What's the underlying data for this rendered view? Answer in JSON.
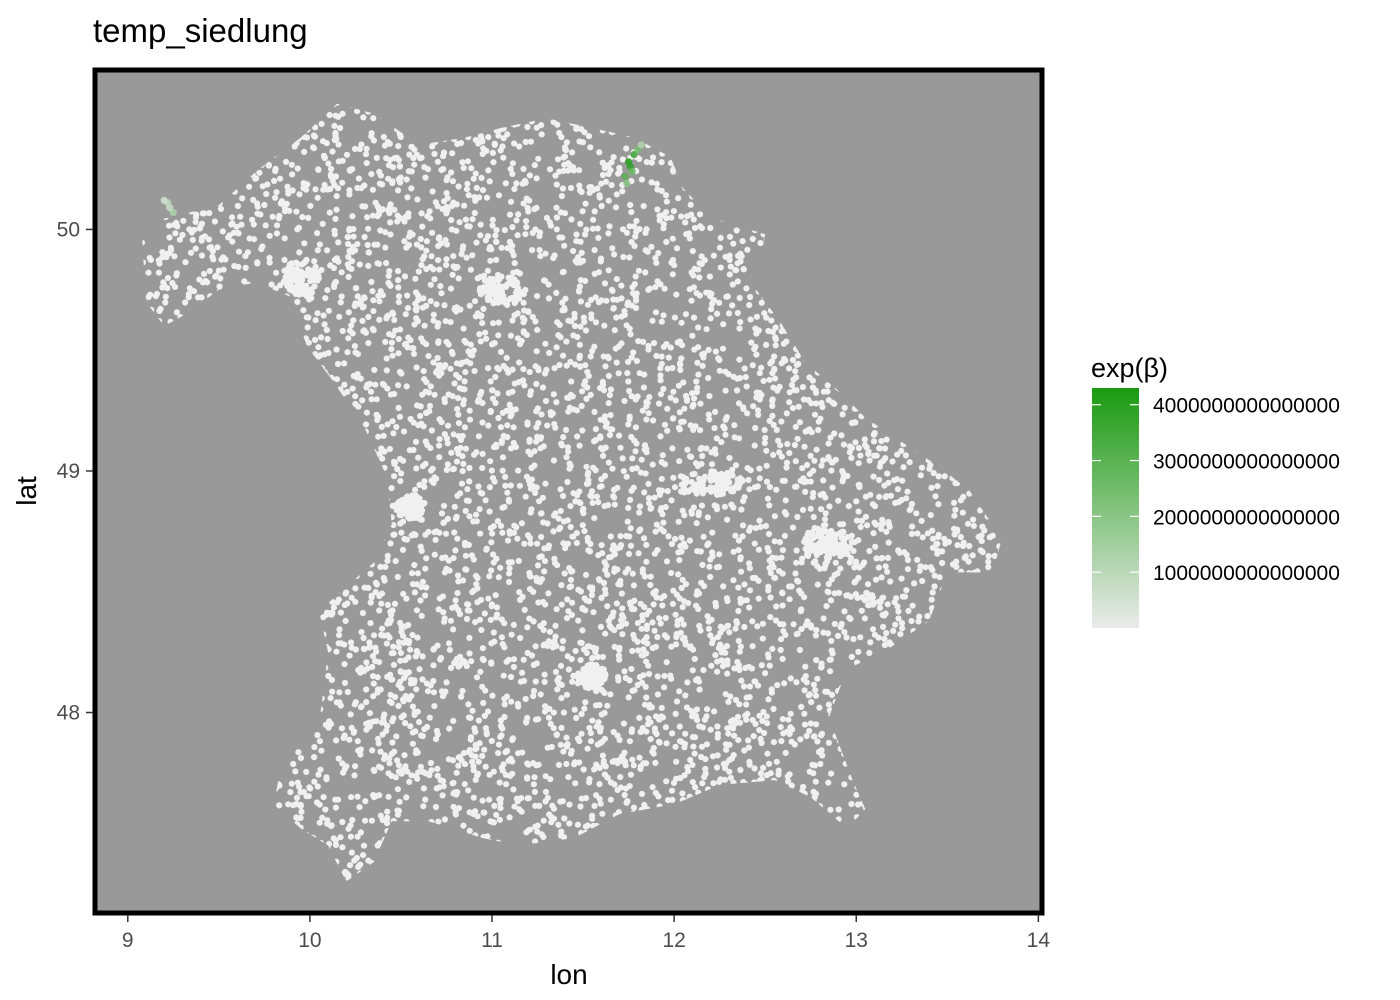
{
  "chart_data": {
    "type": "scatter",
    "title": "temp_siedlung",
    "xlabel": "lon",
    "ylabel": "lat",
    "xlim": [
      8.82,
      14.02
    ],
    "ylim": [
      47.17,
      50.66
    ],
    "x_ticks": [
      "9",
      "10",
      "11",
      "12",
      "13",
      "14"
    ],
    "y_ticks": [
      "48",
      "49",
      "50"
    ],
    "grid": false,
    "panel_background": "#999999",
    "point_color": "#f0f0f0",
    "legend": {
      "title": "exp(β)",
      "position": "right",
      "color_low": "#ebebeb",
      "color_high": "#1a9a10",
      "range": [
        0,
        4300000000000000
      ],
      "breaks": [
        "1000000000000000",
        "2000000000000000",
        "3000000000000000",
        "4000000000000000"
      ]
    },
    "highlight_points": [
      {
        "lon": 11.75,
        "lat": 50.28,
        "value": 4000000000000000
      },
      {
        "lon": 11.78,
        "lat": 50.31,
        "value": 3700000000000000
      },
      {
        "lon": 11.73,
        "lat": 50.22,
        "value": 3000000000000000
      },
      {
        "lon": 11.76,
        "lat": 50.26,
        "value": 3900000000000000
      },
      {
        "lon": 11.8,
        "lat": 50.33,
        "value": 2400000000000000
      },
      {
        "lon": 11.77,
        "lat": 50.24,
        "value": 2700000000000000
      },
      {
        "lon": 11.74,
        "lat": 50.19,
        "value": 2000000000000000
      },
      {
        "lon": 11.82,
        "lat": 50.35,
        "value": 1200000000000000
      },
      {
        "lon": 9.22,
        "lat": 50.11,
        "value": 900000000000000
      },
      {
        "lon": 9.25,
        "lat": 50.07,
        "value": 1300000000000000
      },
      {
        "lon": 9.23,
        "lat": 50.09,
        "value": 700000000000000
      },
      {
        "lon": 9.2,
        "lat": 50.12,
        "value": 500000000000000
      }
    ],
    "region_outline": [
      [
        9.12,
        50.03
      ],
      [
        9.5,
        50.1
      ],
      [
        9.72,
        50.25
      ],
      [
        9.95,
        50.38
      ],
      [
        10.15,
        50.52
      ],
      [
        10.35,
        50.48
      ],
      [
        10.6,
        50.35
      ],
      [
        10.85,
        50.38
      ],
      [
        11.05,
        50.42
      ],
      [
        11.3,
        50.46
      ],
      [
        11.55,
        50.42
      ],
      [
        11.78,
        50.38
      ],
      [
        11.98,
        50.3
      ],
      [
        12.05,
        50.17
      ],
      [
        12.2,
        50.05
      ],
      [
        12.5,
        49.98
      ],
      [
        12.45,
        49.75
      ],
      [
        12.58,
        49.62
      ],
      [
        12.72,
        49.45
      ],
      [
        12.92,
        49.32
      ],
      [
        13.05,
        49.22
      ],
      [
        13.25,
        49.12
      ],
      [
        13.45,
        49.02
      ],
      [
        13.62,
        48.92
      ],
      [
        13.8,
        48.72
      ],
      [
        13.75,
        48.58
      ],
      [
        13.5,
        48.58
      ],
      [
        13.4,
        48.38
      ],
      [
        13.15,
        48.25
      ],
      [
        12.95,
        48.18
      ],
      [
        12.85,
        47.98
      ],
      [
        12.98,
        47.72
      ],
      [
        13.05,
        47.6
      ],
      [
        12.95,
        47.52
      ],
      [
        12.75,
        47.65
      ],
      [
        12.55,
        47.72
      ],
      [
        12.25,
        47.7
      ],
      [
        12.0,
        47.62
      ],
      [
        11.7,
        47.58
      ],
      [
        11.45,
        47.48
      ],
      [
        11.15,
        47.45
      ],
      [
        10.95,
        47.48
      ],
      [
        10.65,
        47.55
      ],
      [
        10.45,
        47.55
      ],
      [
        10.35,
        47.38
      ],
      [
        10.2,
        47.3
      ],
      [
        10.1,
        47.45
      ],
      [
        9.95,
        47.52
      ],
      [
        9.8,
        47.62
      ],
      [
        9.85,
        47.8
      ],
      [
        10.05,
        47.95
      ],
      [
        10.1,
        48.25
      ],
      [
        10.05,
        48.42
      ],
      [
        10.35,
        48.62
      ],
      [
        10.45,
        48.78
      ],
      [
        10.42,
        48.98
      ],
      [
        10.3,
        49.18
      ],
      [
        10.12,
        49.38
      ],
      [
        9.98,
        49.52
      ],
      [
        9.9,
        49.72
      ],
      [
        9.7,
        49.78
      ],
      [
        9.5,
        49.75
      ],
      [
        9.32,
        49.65
      ],
      [
        9.2,
        49.6
      ],
      [
        9.1,
        49.7
      ],
      [
        9.08,
        49.95
      ]
    ]
  }
}
